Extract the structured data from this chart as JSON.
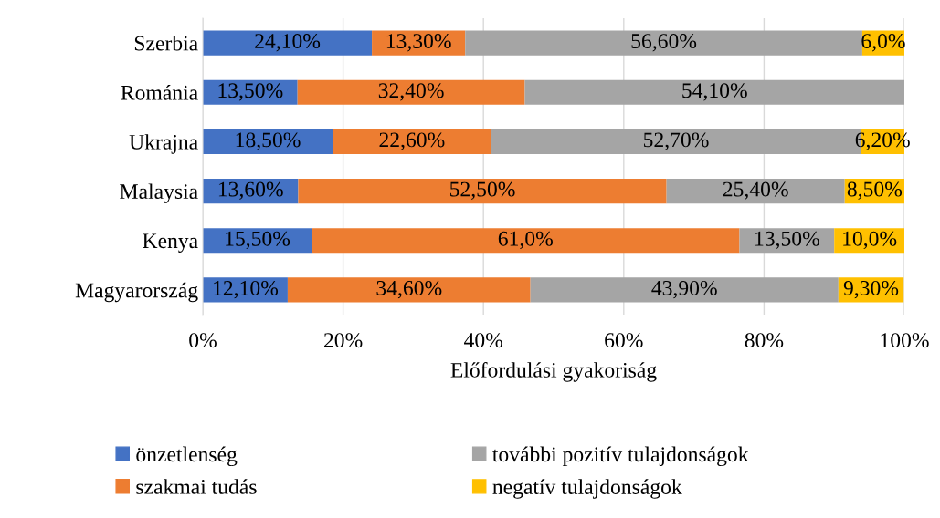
{
  "chart_data": {
    "type": "bar",
    "orientation": "horizontal",
    "stacked": true,
    "xlabel": "Előfordulási gyakoriság",
    "categories": [
      "Szerbia",
      "Románia",
      "Ukrajna",
      "Malaysia",
      "Kenya",
      "Magyarország"
    ],
    "series": [
      {
        "name": "önzetlenség",
        "color": "#4472c4",
        "values": [
          24.1,
          13.5,
          18.5,
          13.6,
          15.5,
          12.1
        ],
        "value_labels": [
          "24,10%",
          "13,50%",
          "18,50%",
          "13,60%",
          "15,50%",
          "12,10%"
        ]
      },
      {
        "name": "szakmai tudás",
        "color": "#ed7d31",
        "values": [
          13.3,
          32.4,
          22.6,
          52.5,
          61.0,
          34.6
        ],
        "value_labels": [
          "13,30%",
          "32,40%",
          "22,60%",
          "52,50%",
          "61,0%",
          "34,60%"
        ]
      },
      {
        "name": "további pozitív tulajdonságok",
        "color": "#a5a5a5",
        "values": [
          56.6,
          54.1,
          52.7,
          25.4,
          13.5,
          43.9
        ],
        "value_labels": [
          "56,60%",
          "54,10%",
          "52,70%",
          "25,40%",
          "13,50%",
          "43,90%"
        ]
      },
      {
        "name": "negatív tulajdonságok",
        "color": "#ffc000",
        "values": [
          6.0,
          null,
          6.2,
          8.5,
          10.0,
          9.3
        ],
        "value_labels": [
          "6,0%",
          null,
          "6,20%",
          "8,50%",
          "10,0%",
          "9,30%"
        ]
      }
    ],
    "xlim": [
      0,
      100
    ],
    "xticks": [
      {
        "value": 0,
        "label": "0%"
      },
      {
        "value": 20,
        "label": "20%"
      },
      {
        "value": 40,
        "label": "40%"
      },
      {
        "value": 60,
        "label": "60%"
      },
      {
        "value": 80,
        "label": "80%"
      },
      {
        "value": 100,
        "label": "100%"
      }
    ],
    "grid": "x",
    "legend": "bottom"
  }
}
